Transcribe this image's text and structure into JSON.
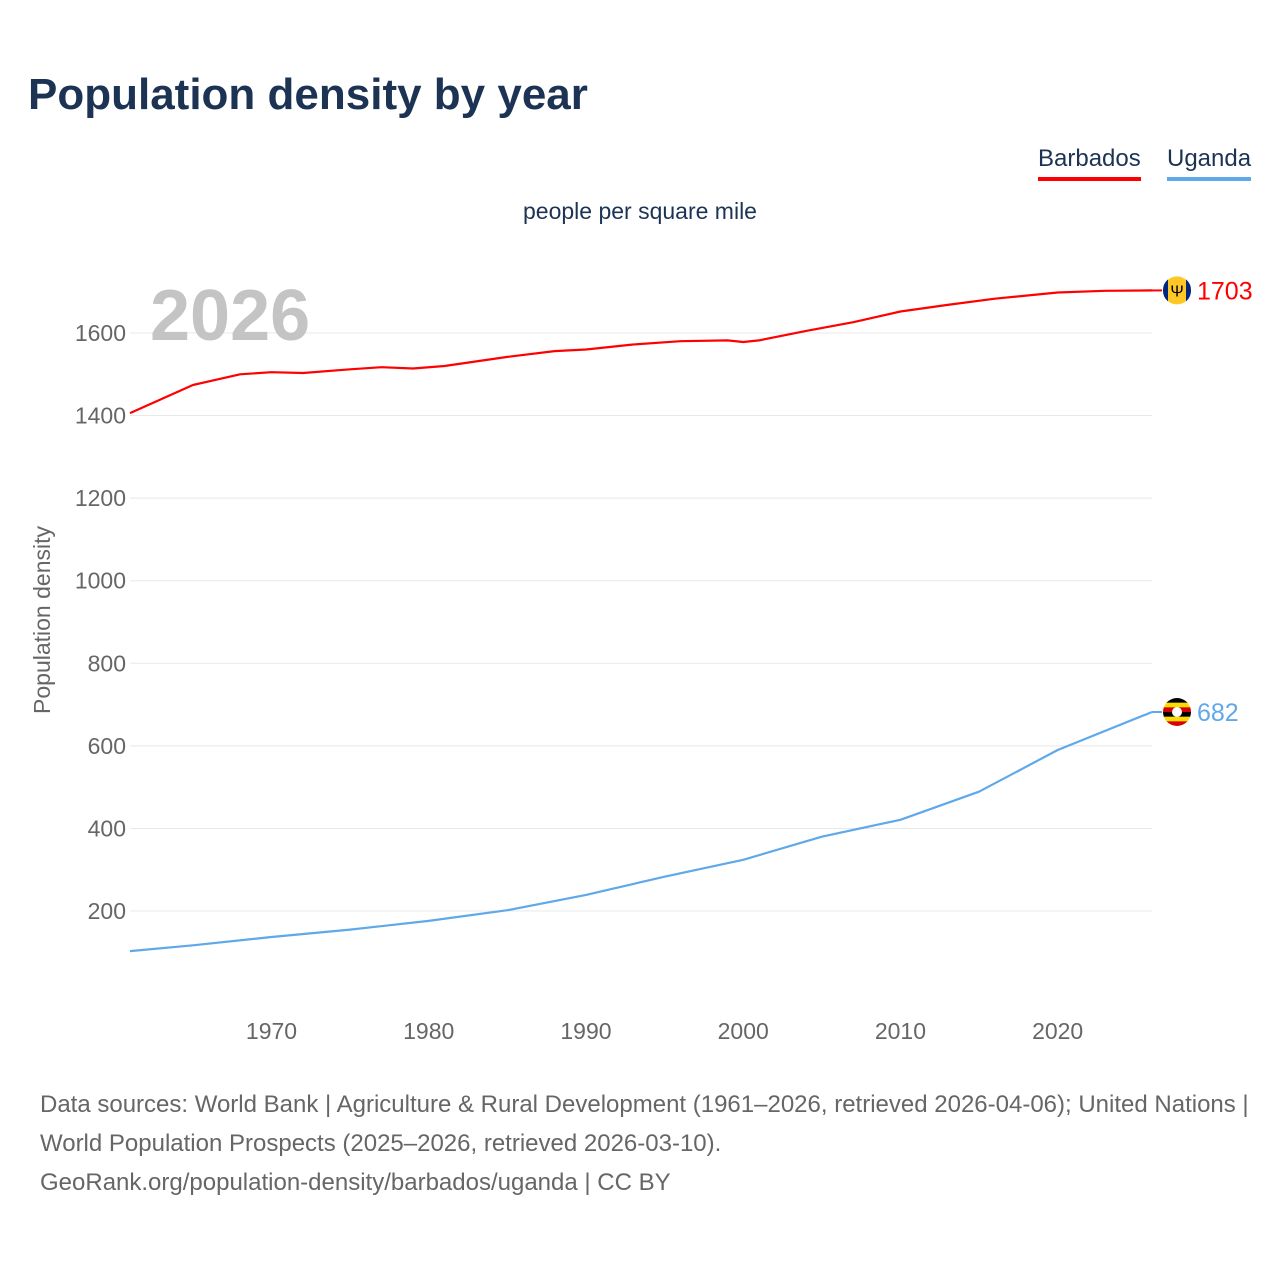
{
  "title": "Population density by year",
  "subtitle": "people per square mile",
  "year_label": "2026",
  "legend": [
    {
      "name": "Barbados",
      "color": "#ff0000"
    },
    {
      "name": "Uganda",
      "color": "#5fa8ea"
    }
  ],
  "footer": {
    "line1": "Data sources: World Bank | Agriculture & Rural Development (1961–2026, retrieved 2026-04-06); United Nations | World Population Prospects (2025–2026, retrieved 2026-03-10).",
    "line2": "GeoRank.org/population-density/barbados/uganda | CC BY"
  },
  "chart_data": {
    "type": "line",
    "title": "Population density by year",
    "ylabel": "Population density",
    "xlabel": "",
    "xlim": [
      1961,
      2026
    ],
    "ylim": [
      0,
      1750
    ],
    "xticks": [
      1970,
      1980,
      1990,
      2000,
      2010,
      2020
    ],
    "yticks": [
      200,
      400,
      600,
      800,
      1000,
      1200,
      1400,
      1600
    ],
    "grid": true,
    "legend_position": "top-right",
    "series": [
      {
        "name": "Barbados",
        "color": "#ff0000",
        "end_label": "1703",
        "x": [
          1961,
          1965,
          1968,
          1970,
          1972,
          1975,
          1977,
          1979,
          1981,
          1985,
          1988,
          1990,
          1993,
          1996,
          1999,
          2000,
          2001,
          2004,
          2007,
          2010,
          2013,
          2016,
          2020,
          2023,
          2026
        ],
        "y": [
          1406,
          1474,
          1500,
          1505,
          1503,
          1512,
          1517,
          1514,
          1520,
          1542,
          1556,
          1560,
          1572,
          1580,
          1582,
          1578,
          1582,
          1605,
          1626,
          1652,
          1668,
          1683,
          1698,
          1702,
          1703
        ]
      },
      {
        "name": "Uganda",
        "color": "#5fa8ea",
        "end_label": "682",
        "x": [
          1961,
          1965,
          1970,
          1975,
          1980,
          1985,
          1990,
          1995,
          2000,
          2005,
          2010,
          2015,
          2020,
          2026
        ],
        "y": [
          103,
          117,
          137,
          155,
          176,
          202,
          239,
          283,
          324,
          380,
          421,
          489,
          590,
          682
        ]
      }
    ]
  }
}
